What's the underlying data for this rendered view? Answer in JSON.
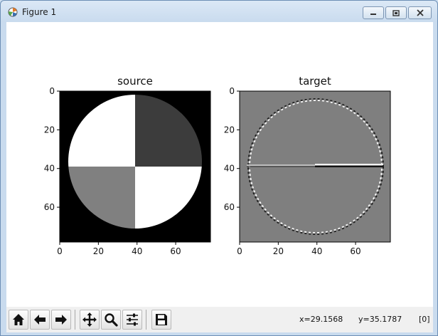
{
  "window": {
    "title": "Figure 1",
    "icon": "matplotlib-icon",
    "controls": [
      "minimize-icon",
      "maximize-icon",
      "close-icon"
    ]
  },
  "figure": {
    "panels": [
      {
        "title": "source",
        "xticks": [
          "0",
          "20",
          "40",
          "60"
        ],
        "yticks": [
          "0",
          "20",
          "40",
          "60"
        ]
      },
      {
        "title": "target",
        "xticks": [
          "0",
          "20",
          "40",
          "60"
        ],
        "yticks": [
          "0",
          "20",
          "40",
          "60"
        ]
      }
    ]
  },
  "chart_data": [
    {
      "type": "heatmap",
      "title": "source",
      "description": "grayscale image of a disk divided into quadrants on black background",
      "x_range": [
        0,
        78
      ],
      "y_range": [
        0,
        78
      ],
      "y_inverted": true,
      "xticks": [
        0,
        20,
        40,
        60
      ],
      "yticks": [
        0,
        20,
        40,
        60
      ]
    },
    {
      "type": "heatmap",
      "title": "target",
      "description": "edge response of disk on gray background",
      "x_range": [
        0,
        78
      ],
      "y_range": [
        0,
        78
      ],
      "y_inverted": true,
      "xticks": [
        0,
        20,
        40,
        60
      ],
      "yticks": [
        0,
        20,
        40,
        60
      ]
    }
  ],
  "toolbar": {
    "buttons": [
      "home-icon",
      "back-icon",
      "forward-icon",
      "pan-icon",
      "zoom-icon",
      "configure-subplots-icon",
      "save-icon"
    ],
    "x_readout": "x=29.1568",
    "y_readout": "y=35.1787",
    "value_readout": "[0]"
  }
}
